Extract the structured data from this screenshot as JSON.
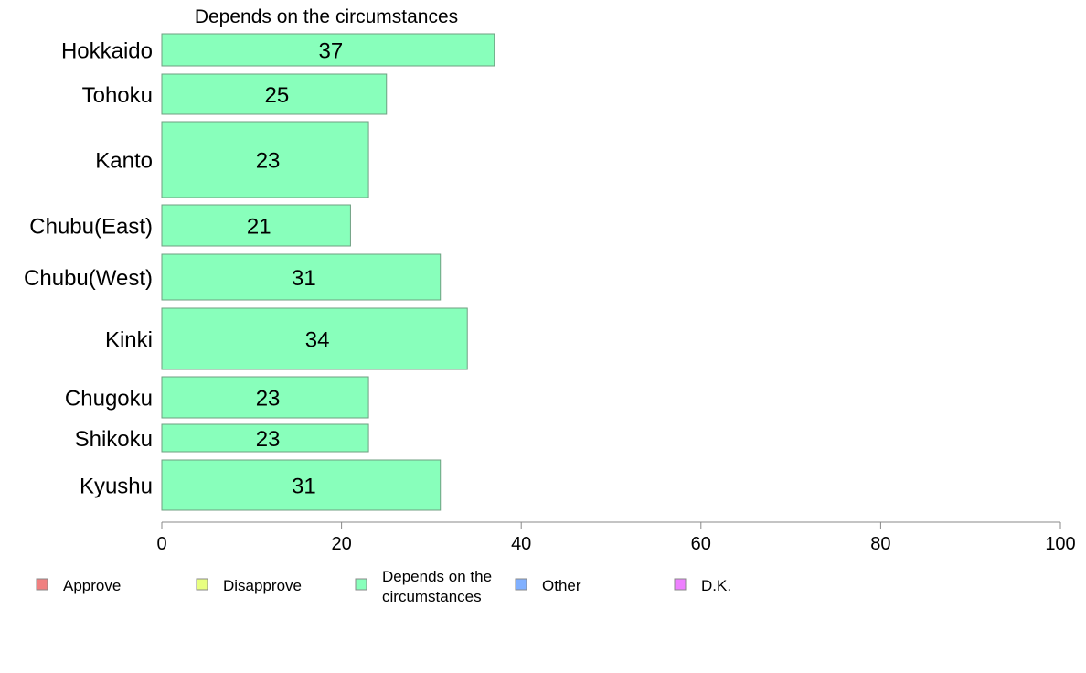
{
  "chart_data": {
    "type": "bar",
    "orientation": "horizontal",
    "title": "Depends on the circumstances",
    "xlabel": "",
    "ylabel": "",
    "xlim": [
      0,
      100
    ],
    "xticks": [
      0,
      20,
      40,
      60,
      80,
      100
    ],
    "grid": false,
    "categories": [
      "Hokkaido",
      "Tohoku",
      "Kanto",
      "Chubu(East)",
      "Chubu(West)",
      "Kinki",
      "Chugoku",
      "Shikoku",
      "Kyushu"
    ],
    "values": [
      37,
      25,
      23,
      21,
      31,
      34,
      23,
      23,
      31
    ],
    "value_labels": [
      "37",
      "25",
      "23",
      "21",
      "31",
      "34",
      "23",
      "23",
      "31"
    ],
    "bar_color": "#88ffbb",
    "legend_placement": "bottom",
    "legend": [
      {
        "name": "Approve",
        "color": "#f08080"
      },
      {
        "name": "Disapprove",
        "color": "#e8ff80"
      },
      {
        "name": "Depends on the circumstances",
        "color": "#88ffbb"
      },
      {
        "name": "Other",
        "color": "#80b0ff"
      },
      {
        "name": "D.K.",
        "color": "#ee80ff"
      }
    ]
  }
}
